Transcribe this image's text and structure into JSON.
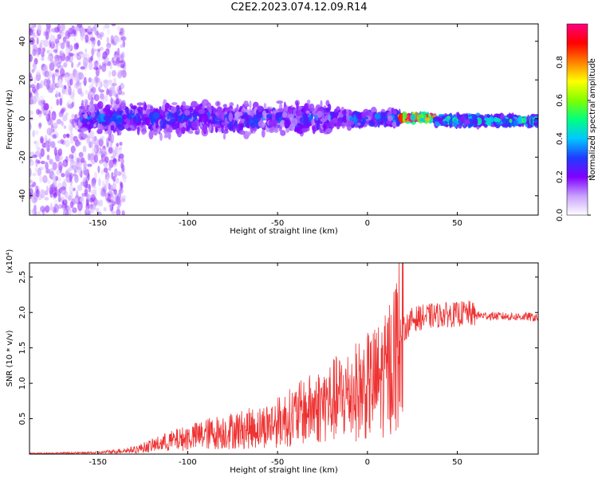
{
  "page_title": "C2E2.2023.074.12.09.R14",
  "chart_data": [
    {
      "type": "heatmap",
      "title": "C2E2.2023.074.12.09.R14",
      "xlabel": "Height of straight line (km)",
      "ylabel": "Frequency (Hz)",
      "xlim": [
        -188,
        95
      ],
      "ylim": [
        -50,
        49
      ],
      "x_ticks": [
        -150,
        -100,
        -50,
        0,
        50
      ],
      "y_ticks": [
        -40,
        -20,
        0,
        20,
        40
      ],
      "colorbar": {
        "label": "Normalized spectral amplitude",
        "range": [
          0.0,
          1.0
        ],
        "ticks": [
          0.0,
          0.2,
          0.4,
          0.6,
          0.8
        ],
        "colors": [
          "#ffffff",
          "#c8a0ff",
          "#8000ff",
          "#1f3cff",
          "#00c8ff",
          "#00ff80",
          "#80ff00",
          "#ffff00",
          "#ff8000",
          "#ff0000",
          "#ff0080"
        ]
      },
      "features": [
        {
          "x_range": [
            -188,
            -135
          ],
          "freq_spread": 50,
          "amplitude": 0.1,
          "description_of_content": "diffuse scatter"
        },
        {
          "x_range": [
            -160,
            -20
          ],
          "freq_center": 0,
          "freq_spread": 10,
          "amplitude": 0.3
        },
        {
          "x_range": [
            -20,
            18
          ],
          "freq_center": 0,
          "freq_spread": 5,
          "amplitude": 0.35
        },
        {
          "x_range": [
            18,
            38
          ],
          "freq_center": 0.5,
          "freq_spread": 2,
          "amplitude": 1.0
        },
        {
          "x_range": [
            38,
            95
          ],
          "freq_center": -1,
          "freq_spread": 3,
          "amplitude": 0.45
        }
      ]
    },
    {
      "type": "line",
      "xlabel": "Height of straight line (km)",
      "ylabel": "SNR (10 * v/v)",
      "y_multiplier": "(x10⁴)",
      "xlim": [
        -188,
        95
      ],
      "ylim": [
        0,
        2.7
      ],
      "x_ticks": [
        -150,
        -100,
        -50,
        0,
        50
      ],
      "y_ticks": [
        0.5,
        1.0,
        1.5,
        2.0,
        2.5
      ],
      "color": "#ee3333",
      "series": [
        {
          "x": [
            -188,
            -150,
            -130,
            -120,
            -110,
            -100,
            -90,
            -80,
            -70,
            -60,
            -50,
            -40,
            -30,
            -20,
            -10,
            0,
            10,
            15,
            20,
            25,
            30,
            35,
            40,
            45,
            50,
            55,
            60,
            70,
            80,
            90,
            95
          ],
          "y": [
            0.01,
            0.02,
            0.06,
            0.12,
            0.18,
            0.23,
            0.28,
            0.32,
            0.35,
            0.38,
            0.45,
            0.55,
            0.65,
            0.75,
            0.85,
            0.95,
            1.1,
            1.4,
            1.75,
            1.9,
            1.93,
            1.95,
            1.96,
            1.97,
            1.97,
            2.0,
            1.96,
            1.95,
            1.94,
            1.94,
            1.92
          ]
        }
      ]
    }
  ]
}
